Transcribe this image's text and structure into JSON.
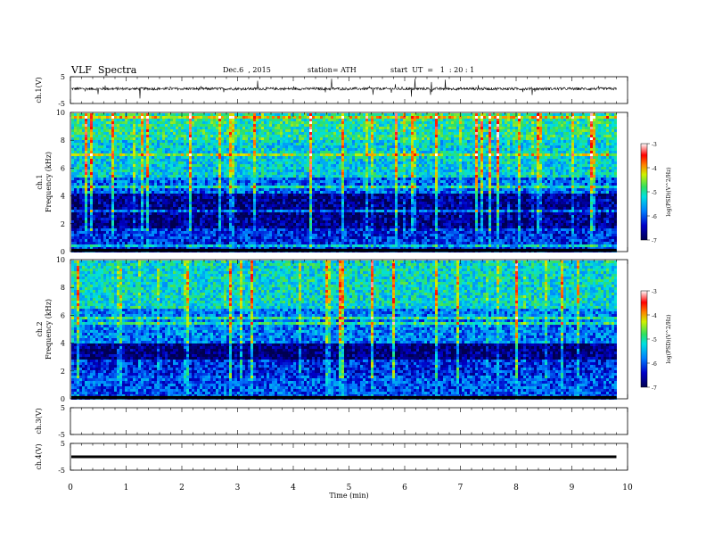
{
  "header": {
    "title": "VLF  Spectra",
    "date": "Dec.6  , 2015",
    "station": "station= ATH",
    "start": "start  UT  =   1  : 20 : 1"
  },
  "chart_data": [
    {
      "type": "line",
      "ylabel": "ch.1(V)",
      "yticks": [
        "5",
        "-5"
      ],
      "ylim": [
        -5,
        5
      ],
      "description_values": {
        "baseline_v": 0.5,
        "noise_amplitude_v": 1.0,
        "spike_amplitude_v": 3.5
      }
    },
    {
      "type": "heatmap",
      "ylabel": "Frequency  (kHz)",
      "channel": "ch.1",
      "ylim": [
        0,
        10
      ],
      "yticks": [
        "0",
        "2",
        "4",
        "6",
        "8",
        "10"
      ],
      "colorbar": {
        "label": "log(PSD)(V^2/Hz)",
        "ticks": [
          "-3",
          "-4",
          "-5",
          "-6",
          "-7"
        ],
        "range": [
          -7,
          -3
        ]
      },
      "bands": [
        {
          "f_low": 0,
          "f_high": 1.8,
          "level": -6.2
        },
        {
          "f_low": 1.8,
          "f_high": 4.6,
          "level": -6.7
        },
        {
          "f_low": 4.6,
          "f_high": 5.5,
          "level": -5.9
        },
        {
          "f_low": 5.5,
          "f_high": 8.2,
          "level": -5.3
        },
        {
          "f_low": 8.2,
          "f_high": 10,
          "level": -5.0
        }
      ]
    },
    {
      "type": "heatmap",
      "ylabel": "Frequency  (kHz)",
      "channel": "ch.2",
      "ylim": [
        0,
        10
      ],
      "yticks": [
        "0",
        "2",
        "4",
        "6",
        "8",
        "10"
      ],
      "colorbar": {
        "label": "log(PSD)(V^2/Hz)",
        "ticks": [
          "-3",
          "-4",
          "-5",
          "-6",
          "-7"
        ],
        "range": [
          -7,
          -3
        ]
      },
      "bands": [
        {
          "f_low": 0,
          "f_high": 1.8,
          "level": -6.0
        },
        {
          "f_low": 1.8,
          "f_high": 3.0,
          "level": -6.2
        },
        {
          "f_low": 3.0,
          "f_high": 4.0,
          "level": -6.8
        },
        {
          "f_low": 4.0,
          "f_high": 6.5,
          "level": -5.8
        },
        {
          "f_low": 6.5,
          "f_high": 10,
          "level": -5.2
        }
      ]
    },
    {
      "type": "line",
      "ylabel": "ch.3(V)",
      "yticks": [
        "5",
        "-5"
      ],
      "ylim": [
        -5,
        5
      ],
      "description_values": {
        "baseline_v": 0
      }
    },
    {
      "type": "line",
      "ylabel": "ch.4(V)",
      "yticks": [
        "5",
        "-5"
      ],
      "ylim": [
        -5,
        5
      ],
      "description_values": {
        "baseline_v": 0
      }
    }
  ],
  "xaxis": {
    "label": "Time  (min)",
    "xlim": [
      0,
      10
    ],
    "ticks": [
      "0",
      "1",
      "2",
      "3",
      "4",
      "5",
      "6",
      "7",
      "8",
      "9",
      "10"
    ],
    "data_end_min": 9.8
  },
  "colors": {
    "waveform": "#000000",
    "background": "#ffffff"
  }
}
